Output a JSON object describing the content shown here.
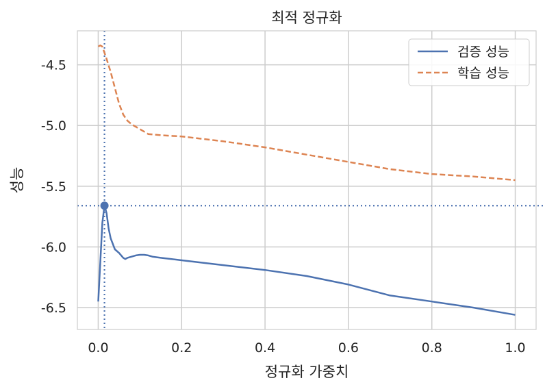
{
  "chart_data": {
    "type": "line",
    "title": "최적 정규화",
    "xlabel": "정규화 가중치",
    "ylabel": "성능",
    "xlim": [
      -0.05,
      1.05
    ],
    "ylim": [
      -6.68,
      -4.22
    ],
    "xticks": [
      0.0,
      0.2,
      0.4,
      0.6,
      0.8,
      1.0
    ],
    "xtick_labels": [
      "0.0",
      "0.2",
      "0.4",
      "0.6",
      "0.8",
      "1.0"
    ],
    "yticks": [
      -4.5,
      -5.0,
      -5.5,
      -6.0,
      -6.5
    ],
    "ytick_labels": [
      "-4.5",
      "-5.0",
      "-5.5",
      "-6.0",
      "-6.5"
    ],
    "grid": true,
    "legend_position": "top-right",
    "series": [
      {
        "name": "검증 성능",
        "color": "#4c72b0",
        "style": "solid",
        "x": [
          0.0,
          0.01,
          0.015,
          0.02,
          0.025,
          0.03,
          0.04,
          0.05,
          0.06,
          0.065,
          0.07,
          0.08,
          0.09,
          0.1,
          0.11,
          0.12,
          0.13,
          0.15,
          0.2,
          0.3,
          0.4,
          0.5,
          0.6,
          0.7,
          0.8,
          0.9,
          1.0
        ],
        "y": [
          -6.45,
          -5.8,
          -5.66,
          -5.72,
          -5.85,
          -5.93,
          -6.02,
          -6.05,
          -6.09,
          -6.1,
          -6.09,
          -6.08,
          -6.07,
          -6.065,
          -6.065,
          -6.07,
          -6.08,
          -6.09,
          -6.11,
          -6.15,
          -6.19,
          -6.24,
          -6.31,
          -6.4,
          -6.45,
          -6.5,
          -6.56
        ]
      },
      {
        "name": "학습 성능",
        "color": "#dd8452",
        "style": "dashed",
        "x": [
          0.0,
          0.005,
          0.01,
          0.02,
          0.03,
          0.04,
          0.05,
          0.06,
          0.07,
          0.08,
          0.09,
          0.1,
          0.12,
          0.15,
          0.2,
          0.3,
          0.4,
          0.5,
          0.6,
          0.7,
          0.8,
          0.9,
          1.0
        ],
        "y": [
          -4.35,
          -4.34,
          -4.35,
          -4.45,
          -4.56,
          -4.69,
          -4.82,
          -4.91,
          -4.96,
          -4.99,
          -5.01,
          -5.03,
          -5.07,
          -5.08,
          -5.09,
          -5.13,
          -5.18,
          -5.24,
          -5.3,
          -5.36,
          -5.4,
          -5.42,
          -5.45
        ]
      }
    ],
    "optimum": {
      "x": 0.015,
      "y": -5.66,
      "color": "#4c72b0"
    }
  }
}
